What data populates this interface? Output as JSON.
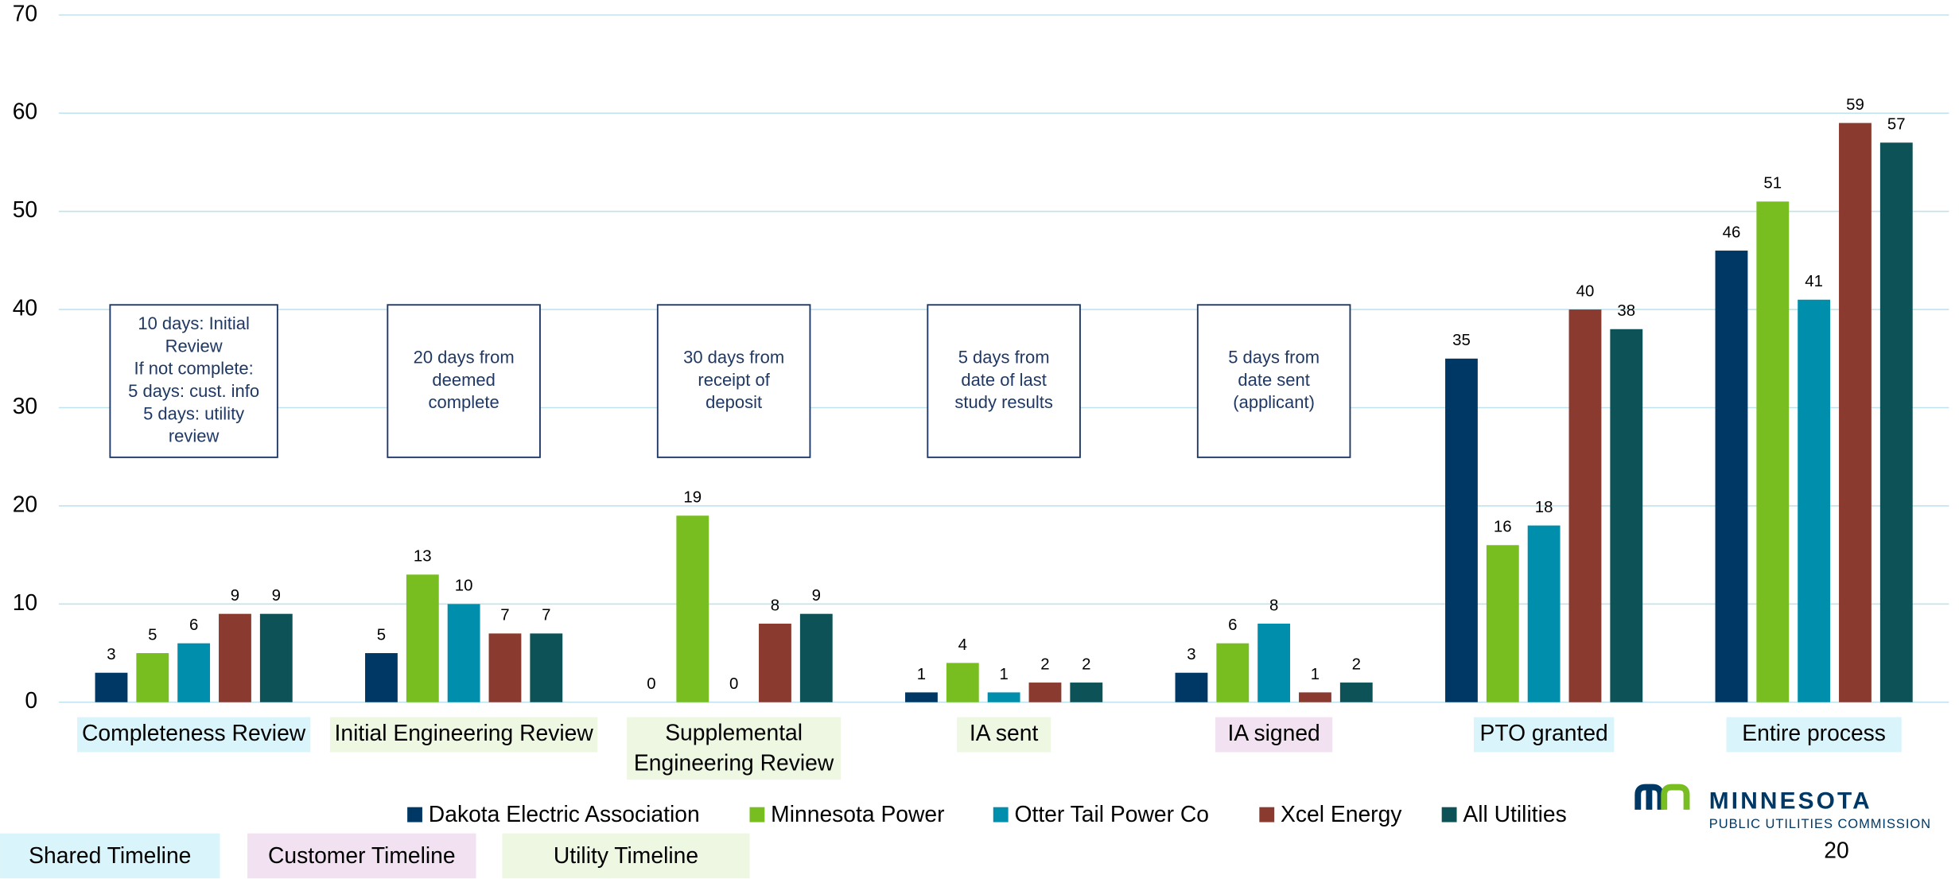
{
  "chart_data": {
    "type": "bar",
    "categories": [
      "Completeness Review",
      "Initial Engineering Review",
      "Supplemental Engineering Review",
      "IA sent",
      "IA signed",
      "PTO granted",
      "Entire process"
    ],
    "series": [
      {
        "name": "Dakota Electric Association",
        "color": "#003865",
        "values": [
          3,
          5,
          0,
          1,
          3,
          35,
          46
        ]
      },
      {
        "name": "Minnesota Power",
        "color": "#78be20",
        "values": [
          5,
          13,
          19,
          4,
          6,
          16,
          51
        ]
      },
      {
        "name": "Otter Tail Power Co",
        "color": "#008ead",
        "values": [
          6,
          10,
          0,
          1,
          8,
          18,
          41
        ]
      },
      {
        "name": "Xcel Energy",
        "color": "#8b3a2f",
        "values": [
          9,
          7,
          8,
          2,
          1,
          40,
          59
        ]
      },
      {
        "name": "All Utilities",
        "color": "#0d5257",
        "values": [
          9,
          7,
          9,
          2,
          2,
          38,
          57
        ]
      }
    ],
    "ylim": [
      0,
      70
    ],
    "yticks": [
      0,
      10,
      20,
      30,
      40,
      50,
      60,
      70
    ],
    "grid": true,
    "timelines": [
      {
        "name": "Shared Timeline",
        "color": "#d9f4fa"
      },
      {
        "name": "Customer Timeline",
        "color": "#f1e1f1"
      },
      {
        "name": "Utility Timeline",
        "color": "#eef7e1"
      }
    ],
    "category_timeline": [
      0,
      2,
      2,
      2,
      1,
      0,
      0
    ],
    "annotations": [
      [
        "10 days: Initial",
        "Review",
        "If not complete:",
        "5 days: cust. info",
        "5 days: utility",
        "review"
      ],
      [
        "20 days from",
        "deemed",
        "complete"
      ],
      [
        "30 days from",
        "receipt of",
        "deposit"
      ],
      [
        "5 days from",
        "date of last",
        "study results"
      ],
      [
        "5 days from",
        "date sent",
        "(applicant)"
      ]
    ]
  },
  "logo": {
    "name": "MINNESOTA",
    "subtitle": "PUBLIC UTILITIES COMMISSION"
  },
  "page_number": "20"
}
